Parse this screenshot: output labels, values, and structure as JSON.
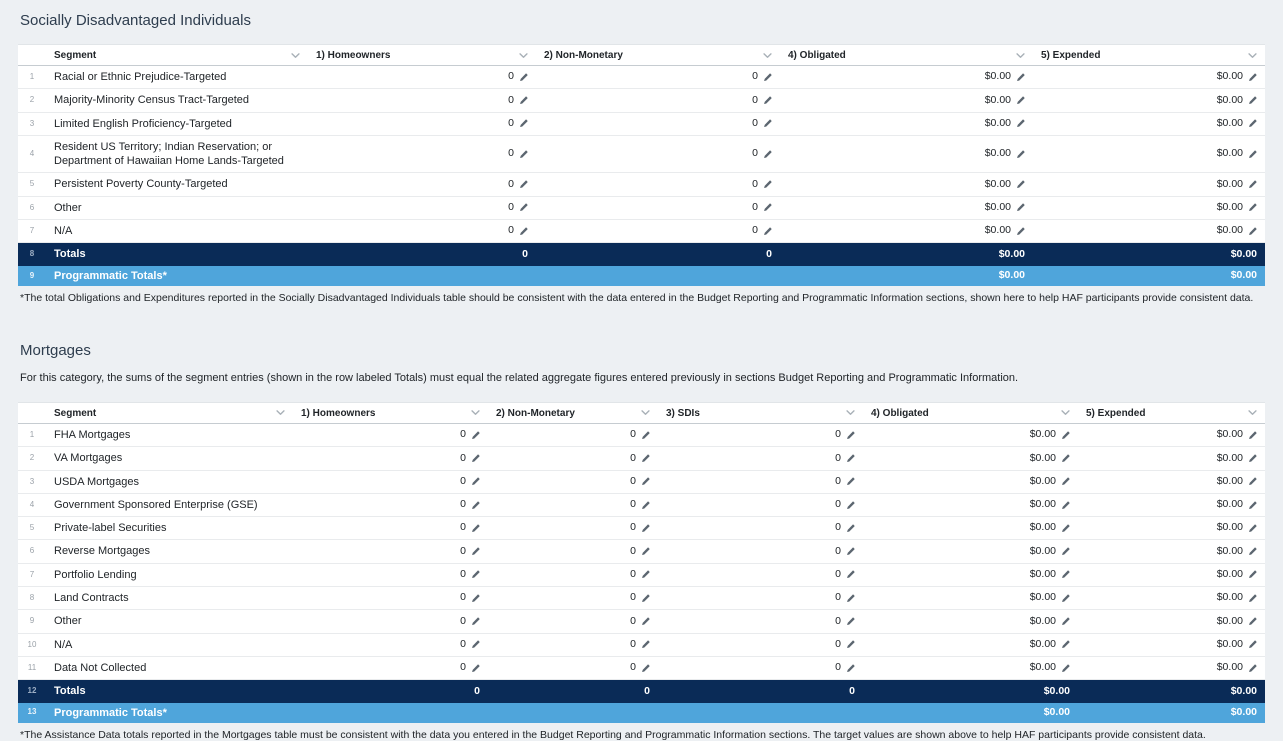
{
  "colors": {
    "page_bg": "#edf0f3",
    "totals_row_bg": "#0a2b57",
    "programmatic_row_bg": "#4fa5db",
    "table_bg": "#ffffff"
  },
  "icons": {
    "column_sort": "chevron-down-icon",
    "edit": "pencil-icon"
  },
  "sdi": {
    "title": "Socially Disadvantaged Individuals",
    "footnote": "*The total Obligations and Expenditures reported in the Socially Disadvantaged Individuals table should be consistent with the data entered in the Budget Reporting and Programmatic Information sections, shown here to help HAF participants provide consistent data.",
    "table": {
      "columns": [
        "Segment",
        "1) Homeowners",
        "2) Non-Monetary",
        "4) Obligated",
        "5) Expended"
      ],
      "rows": [
        {
          "num": "1",
          "segment": "Racial or Ethnic Prejudice-Targeted",
          "values": [
            "0",
            "0",
            "$0.00",
            "$0.00"
          ]
        },
        {
          "num": "2",
          "segment": "Majority-Minority Census Tract-Targeted",
          "values": [
            "0",
            "0",
            "$0.00",
            "$0.00"
          ]
        },
        {
          "num": "3",
          "segment": "Limited English Proficiency-Targeted",
          "values": [
            "0",
            "0",
            "$0.00",
            "$0.00"
          ]
        },
        {
          "num": "4",
          "segment": "Resident US Territory; Indian Reservation; or Department of Hawaiian Home Lands-Targeted",
          "values": [
            "0",
            "0",
            "$0.00",
            "$0.00"
          ]
        },
        {
          "num": "5",
          "segment": "Persistent Poverty County-Targeted",
          "values": [
            "0",
            "0",
            "$0.00",
            "$0.00"
          ]
        },
        {
          "num": "6",
          "segment": "Other",
          "values": [
            "0",
            "0",
            "$0.00",
            "$0.00"
          ]
        },
        {
          "num": "7",
          "segment": "N/A",
          "values": [
            "0",
            "0",
            "$0.00",
            "$0.00"
          ]
        }
      ],
      "totals_row": {
        "num": "8",
        "label": "Totals",
        "values": [
          "0",
          "0",
          "$0.00",
          "$0.00"
        ]
      },
      "programmatic_row": {
        "num": "9",
        "label": "Programmatic Totals*",
        "values": [
          "",
          "",
          "$0.00",
          "$0.00"
        ]
      }
    }
  },
  "mortgages": {
    "title": "Mortgages",
    "intro": "For this category, the sums of the segment entries (shown in the row labeled Totals) must equal the related aggregate figures entered previously in sections Budget Reporting and Programmatic Information.",
    "footnote": "*The Assistance Data totals reported in the Mortgages table must be consistent with the data you entered in the Budget Reporting and Programmatic Information sections. The target values are shown above to help HAF participants provide consistent data.",
    "table": {
      "columns": [
        "Segment",
        "1) Homeowners",
        "2) Non-Monetary",
        "3) SDIs",
        "4) Obligated",
        "5) Expended"
      ],
      "rows": [
        {
          "num": "1",
          "segment": "FHA Mortgages",
          "values": [
            "0",
            "0",
            "0",
            "$0.00",
            "$0.00"
          ]
        },
        {
          "num": "2",
          "segment": "VA Mortgages",
          "values": [
            "0",
            "0",
            "0",
            "$0.00",
            "$0.00"
          ]
        },
        {
          "num": "3",
          "segment": "USDA Mortgages",
          "values": [
            "0",
            "0",
            "0",
            "$0.00",
            "$0.00"
          ]
        },
        {
          "num": "4",
          "segment": "Government Sponsored Enterprise (GSE)",
          "values": [
            "0",
            "0",
            "0",
            "$0.00",
            "$0.00"
          ]
        },
        {
          "num": "5",
          "segment": "Private-label Securities",
          "values": [
            "0",
            "0",
            "0",
            "$0.00",
            "$0.00"
          ]
        },
        {
          "num": "6",
          "segment": "Reverse Mortgages",
          "values": [
            "0",
            "0",
            "0",
            "$0.00",
            "$0.00"
          ]
        },
        {
          "num": "7",
          "segment": "Portfolio Lending",
          "values": [
            "0",
            "0",
            "0",
            "$0.00",
            "$0.00"
          ]
        },
        {
          "num": "8",
          "segment": "Land Contracts",
          "values": [
            "0",
            "0",
            "0",
            "$0.00",
            "$0.00"
          ]
        },
        {
          "num": "9",
          "segment": "Other",
          "values": [
            "0",
            "0",
            "0",
            "$0.00",
            "$0.00"
          ]
        },
        {
          "num": "10",
          "segment": "N/A",
          "values": [
            "0",
            "0",
            "0",
            "$0.00",
            "$0.00"
          ]
        },
        {
          "num": "11",
          "segment": "Data Not Collected",
          "values": [
            "0",
            "0",
            "0",
            "$0.00",
            "$0.00"
          ]
        }
      ],
      "totals_row": {
        "num": "12",
        "label": "Totals",
        "values": [
          "0",
          "0",
          "0",
          "$0.00",
          "$0.00"
        ]
      },
      "programmatic_row": {
        "num": "13",
        "label": "Programmatic Totals*",
        "values": [
          "",
          "",
          "",
          "$0.00",
          "$0.00"
        ]
      }
    }
  }
}
